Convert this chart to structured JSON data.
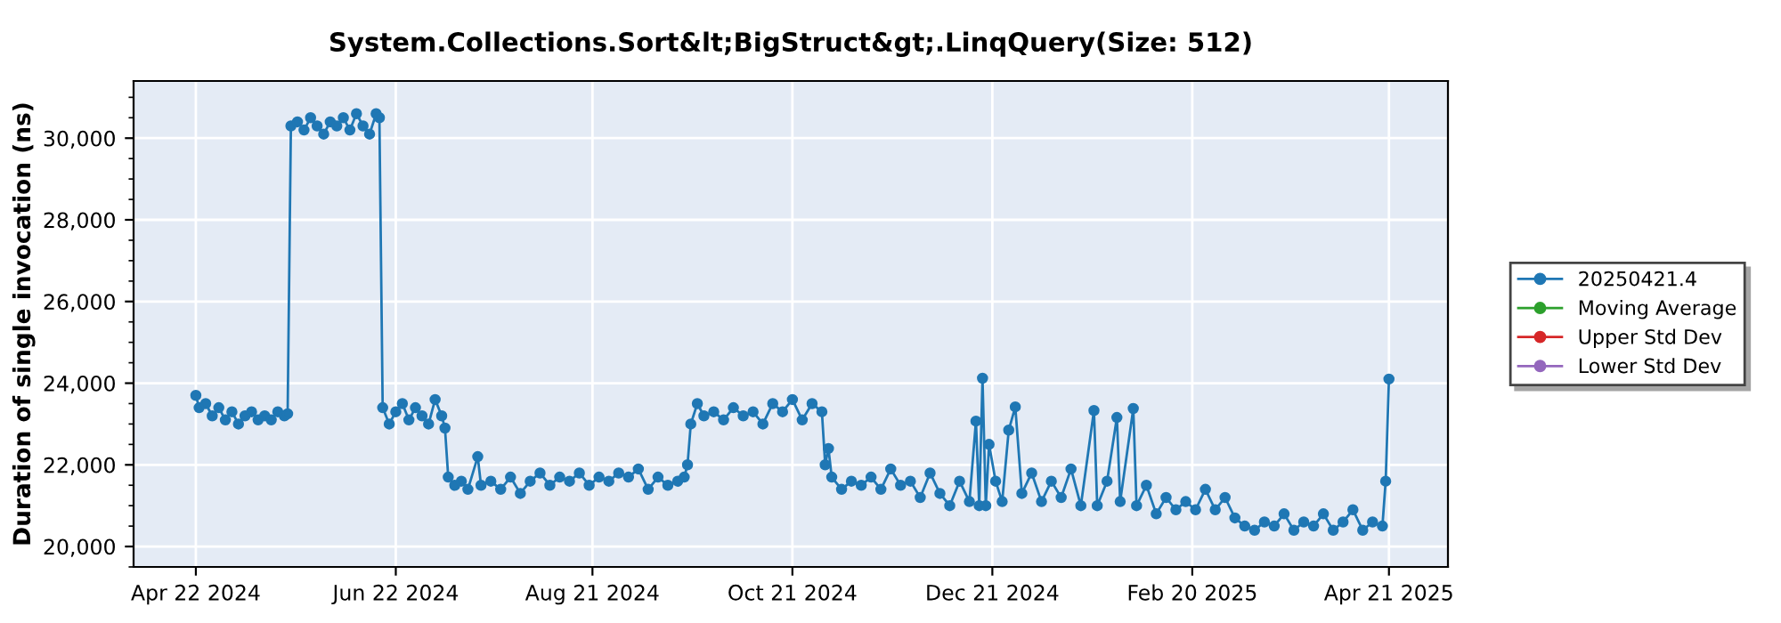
{
  "chart_data": {
    "type": "line",
    "title": "System.Collections.Sort&lt;BigStruct&gt;.LinqQuery(Size: 512)",
    "ylabel": "Duration of single invocation (ns)",
    "xlim": [
      "2024-04-03",
      "2025-05-09"
    ],
    "xticks": [
      {
        "value": "2024-04-22",
        "label": "Apr 22 2024"
      },
      {
        "value": "2024-06-22",
        "label": "Jun 22 2024"
      },
      {
        "value": "2024-08-21",
        "label": "Aug 21 2024"
      },
      {
        "value": "2024-10-21",
        "label": "Oct 21 2024"
      },
      {
        "value": "2024-12-21",
        "label": "Dec 21 2024"
      },
      {
        "value": "2025-02-20",
        "label": "Feb 20 2025"
      },
      {
        "value": "2025-04-21",
        "label": "Apr 21 2025"
      }
    ],
    "ylim": [
      19500,
      31400
    ],
    "yticks": [
      {
        "value": 20000,
        "label": "20,000"
      },
      {
        "value": 22000,
        "label": "22,000"
      },
      {
        "value": 24000,
        "label": "24,000"
      },
      {
        "value": 26000,
        "label": "26,000"
      },
      {
        "value": 28000,
        "label": "28,000"
      },
      {
        "value": 30000,
        "label": "30,000"
      }
    ],
    "grid": true,
    "legend": "right",
    "marker": "circle",
    "line_style": "solid",
    "series": [
      {
        "name": "20250421.4",
        "color": "#1f77b4",
        "x": [
          "2024-04-22",
          "2024-04-23",
          "2024-04-25",
          "2024-04-27",
          "2024-04-29",
          "2024-05-01",
          "2024-05-03",
          "2024-05-05",
          "2024-05-07",
          "2024-05-09",
          "2024-05-11",
          "2024-05-13",
          "2024-05-15",
          "2024-05-17",
          "2024-05-19",
          "2024-05-20",
          "2024-05-21",
          "2024-05-23",
          "2024-05-25",
          "2024-05-27",
          "2024-05-29",
          "2024-05-31",
          "2024-06-02",
          "2024-06-04",
          "2024-06-06",
          "2024-06-08",
          "2024-06-10",
          "2024-06-12",
          "2024-06-14",
          "2024-06-16",
          "2024-06-17",
          "2024-06-18",
          "2024-06-20",
          "2024-06-22",
          "2024-06-24",
          "2024-06-26",
          "2024-06-28",
          "2024-06-30",
          "2024-07-02",
          "2024-07-04",
          "2024-07-06",
          "2024-07-07",
          "2024-07-08",
          "2024-07-10",
          "2024-07-12",
          "2024-07-14",
          "2024-07-17",
          "2024-07-18",
          "2024-07-21",
          "2024-07-24",
          "2024-07-27",
          "2024-07-30",
          "2024-08-02",
          "2024-08-05",
          "2024-08-08",
          "2024-08-11",
          "2024-08-14",
          "2024-08-17",
          "2024-08-20",
          "2024-08-23",
          "2024-08-26",
          "2024-08-29",
          "2024-09-01",
          "2024-09-04",
          "2024-09-07",
          "2024-09-10",
          "2024-09-13",
          "2024-09-16",
          "2024-09-18",
          "2024-09-19",
          "2024-09-20",
          "2024-09-22",
          "2024-09-24",
          "2024-09-27",
          "2024-09-30",
          "2024-10-03",
          "2024-10-06",
          "2024-10-09",
          "2024-10-12",
          "2024-10-15",
          "2024-10-18",
          "2024-10-21",
          "2024-10-24",
          "2024-10-27",
          "2024-10-30",
          "2024-10-31",
          "2024-11-01",
          "2024-11-02",
          "2024-11-05",
          "2024-11-08",
          "2024-11-11",
          "2024-11-14",
          "2024-11-17",
          "2024-11-20",
          "2024-11-23",
          "2024-11-26",
          "2024-11-29",
          "2024-12-02",
          "2024-12-05",
          "2024-12-08",
          "2024-12-11",
          "2024-12-14",
          "2024-12-16",
          "2024-12-17",
          "2024-12-18",
          "2024-12-19",
          "2024-12-20",
          "2024-12-22",
          "2024-12-24",
          "2024-12-26",
          "2024-12-28",
          "2024-12-30",
          "2025-01-02",
          "2025-01-05",
          "2025-01-08",
          "2025-01-11",
          "2025-01-14",
          "2025-01-17",
          "2025-01-21",
          "2025-01-22",
          "2025-01-25",
          "2025-01-28",
          "2025-01-29",
          "2025-02-02",
          "2025-02-03",
          "2025-02-06",
          "2025-02-09",
          "2025-02-12",
          "2025-02-15",
          "2025-02-18",
          "2025-02-21",
          "2025-02-24",
          "2025-02-27",
          "2025-03-02",
          "2025-03-05",
          "2025-03-08",
          "2025-03-11",
          "2025-03-14",
          "2025-03-17",
          "2025-03-20",
          "2025-03-23",
          "2025-03-26",
          "2025-03-29",
          "2025-04-01",
          "2025-04-04",
          "2025-04-07",
          "2025-04-10",
          "2025-04-13",
          "2025-04-16",
          "2025-04-19",
          "2025-04-20",
          "2025-04-21"
        ],
        "values": [
          23700,
          23400,
          23500,
          23200,
          23400,
          23100,
          23300,
          23000,
          23200,
          23300,
          23100,
          23200,
          23100,
          23300,
          23200,
          23250,
          30300,
          30400,
          30200,
          30500,
          30300,
          30100,
          30400,
          30300,
          30500,
          30200,
          30600,
          30300,
          30100,
          30600,
          30500,
          23400,
          23000,
          23300,
          23500,
          23100,
          23400,
          23200,
          23000,
          23600,
          23200,
          22900,
          21700,
          21500,
          21600,
          21400,
          22200,
          21500,
          21600,
          21400,
          21700,
          21300,
          21600,
          21800,
          21500,
          21700,
          21600,
          21800,
          21500,
          21700,
          21600,
          21800,
          21700,
          21900,
          21400,
          21700,
          21500,
          21600,
          21700,
          22000,
          23000,
          23500,
          23200,
          23300,
          23100,
          23400,
          23200,
          23300,
          23000,
          23500,
          23300,
          23600,
          23100,
          23500,
          23300,
          22000,
          22400,
          21700,
          21400,
          21600,
          21500,
          21700,
          21400,
          21900,
          21500,
          21600,
          21200,
          21800,
          21300,
          21000,
          21600,
          21100,
          23070,
          21000,
          24120,
          21000,
          22500,
          21600,
          21100,
          22850,
          23420,
          21300,
          21800,
          21100,
          21600,
          21200,
          21900,
          21000,
          23330,
          21000,
          21600,
          23160,
          21100,
          23380,
          21000,
          21500,
          20800,
          21200,
          20900,
          21100,
          20900,
          21400,
          20900,
          21200,
          20700,
          20500,
          20400,
          20600,
          20500,
          20800,
          20400,
          20600,
          20500,
          20800,
          20400,
          20600,
          20900,
          20400,
          20600,
          20500,
          21600,
          24100
        ]
      },
      {
        "name": "Moving Average",
        "color": "#2ca02c"
      },
      {
        "name": "Upper Std Dev",
        "color": "#d62728"
      },
      {
        "name": "Lower Std Dev",
        "color": "#9467bd"
      }
    ]
  }
}
